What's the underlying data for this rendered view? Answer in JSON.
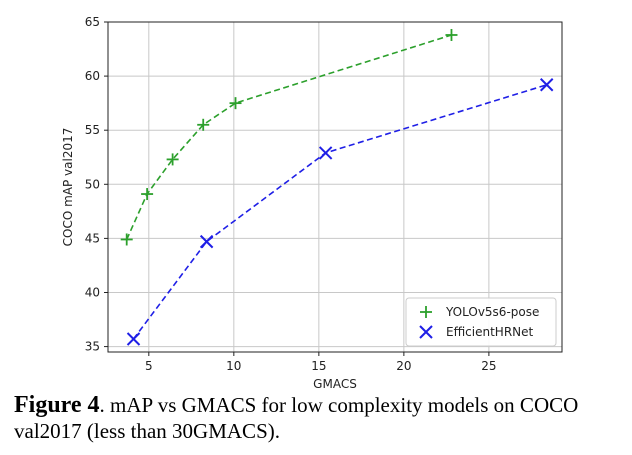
{
  "chart_data": {
    "type": "line",
    "title": "",
    "xlabel": "GMACS",
    "ylabel": "COCO mAP val2017",
    "xlim": [
      2.6,
      29.3
    ],
    "ylim": [
      34.5,
      65.0
    ],
    "xticks": [
      5,
      10,
      15,
      20,
      25
    ],
    "yticks": [
      35,
      40,
      45,
      50,
      55,
      60,
      65
    ],
    "grid": true,
    "legend_position": "bottom-right",
    "series": [
      {
        "name": "YOLOv5s6-pose",
        "color": "#2ca02c",
        "marker": "plus",
        "line_style": "dashed",
        "x": [
          3.7,
          4.9,
          6.4,
          8.2,
          10.1,
          22.8
        ],
        "y": [
          44.9,
          49.1,
          52.3,
          55.5,
          57.5,
          63.8
        ]
      },
      {
        "name": "EfficientHRNet",
        "color": "#1f1fe6",
        "marker": "x",
        "line_style": "dashed",
        "x": [
          4.1,
          8.4,
          15.4,
          28.4
        ],
        "y": [
          35.7,
          44.7,
          52.9,
          59.2
        ]
      }
    ]
  },
  "caption": {
    "label": "Figure 4",
    "text": ". mAP vs GMACS for low complexity models on COCO val2017 (less than 30GMACS)."
  }
}
